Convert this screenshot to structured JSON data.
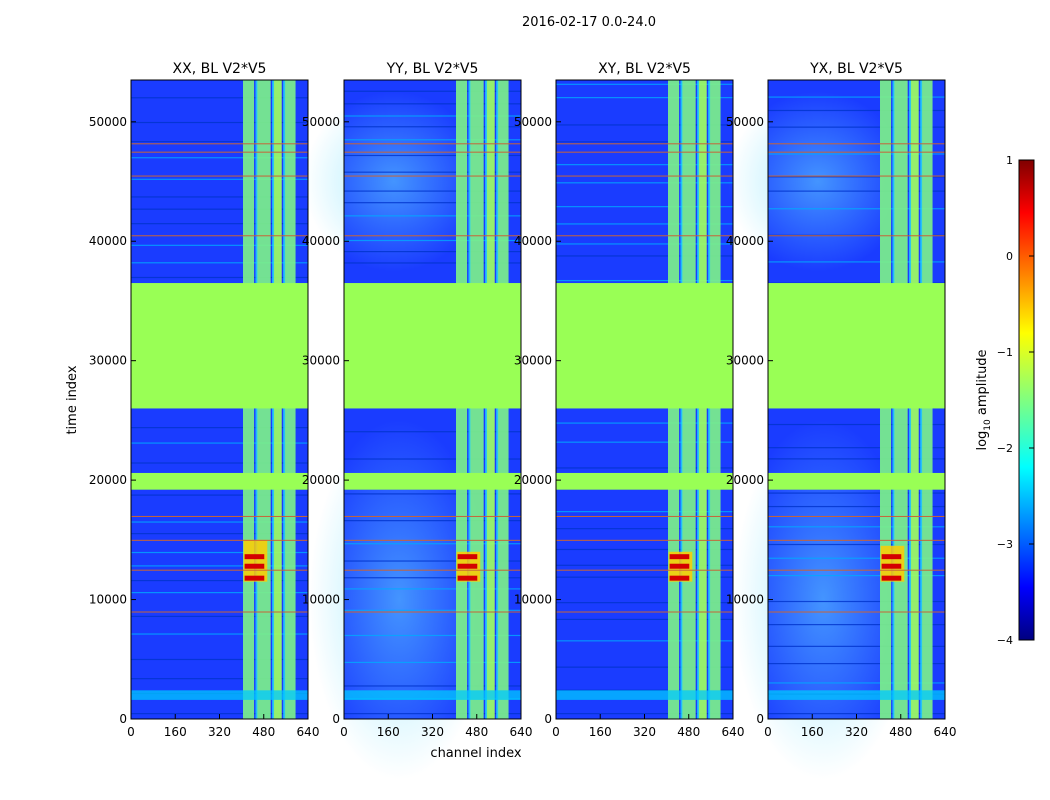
{
  "figure": {
    "suptitle": "2016-02-17 0.0-24.0",
    "xlabel": "channel index",
    "ylabel": "time index"
  },
  "chart_data": [
    {
      "type": "heatmap",
      "title": "XX, BL V2*V5",
      "x_range": [
        0,
        640
      ],
      "y_range": [
        0,
        53500
      ],
      "xticks": [
        0,
        160,
        320,
        480,
        640
      ],
      "yticks": [
        0,
        10000,
        20000,
        30000,
        40000,
        50000
      ],
      "z_label": "log10 amplitude",
      "flagged_time_ranges": [
        [
          26000,
          36500
        ],
        [
          19200,
          20600
        ]
      ],
      "bright_channel_ranges": [
        [
          405,
          445
        ],
        [
          455,
          505
        ],
        [
          515,
          545
        ],
        [
          555,
          595
        ]
      ],
      "rfi_time_ranges": [
        [
          1600,
          2400
        ]
      ],
      "hotspot": {
        "time_range": [
          11500,
          15000
        ],
        "channel_range": [
          400,
          500
        ]
      }
    },
    {
      "type": "heatmap",
      "title": "YY, BL V2*V5",
      "x_range": [
        0,
        640
      ],
      "y_range": [
        0,
        53500
      ],
      "xticks": [
        0,
        160,
        320,
        480,
        640
      ],
      "yticks": [
        0,
        10000,
        20000,
        30000,
        40000,
        50000
      ],
      "z_label": "log10 amplitude",
      "flagged_time_ranges": [
        [
          26000,
          36500
        ],
        [
          19200,
          20600
        ]
      ],
      "bright_channel_ranges": [
        [
          405,
          445
        ],
        [
          455,
          505
        ],
        [
          515,
          545
        ],
        [
          555,
          595
        ]
      ],
      "rfi_time_ranges": [
        [
          1600,
          2400
        ]
      ],
      "hotspot": {
        "time_range": [
          11500,
          14000
        ],
        "channel_range": [
          400,
          500
        ]
      }
    },
    {
      "type": "heatmap",
      "title": "XY, BL V2*V5",
      "x_range": [
        0,
        640
      ],
      "y_range": [
        0,
        53500
      ],
      "xticks": [
        0,
        160,
        320,
        480,
        640
      ],
      "yticks": [
        0,
        10000,
        20000,
        30000,
        40000,
        50000
      ],
      "z_label": "log10 amplitude",
      "flagged_time_ranges": [
        [
          26000,
          36500
        ],
        [
          19200,
          20600
        ]
      ],
      "bright_channel_ranges": [
        [
          405,
          445
        ],
        [
          455,
          505
        ],
        [
          515,
          545
        ],
        [
          555,
          595
        ]
      ],
      "rfi_time_ranges": [
        [
          1600,
          2400
        ]
      ],
      "hotspot": {
        "time_range": [
          11500,
          14000
        ],
        "channel_range": [
          400,
          500
        ]
      }
    },
    {
      "type": "heatmap",
      "title": "YX, BL V2*V5",
      "x_range": [
        0,
        640
      ],
      "y_range": [
        0,
        53500
      ],
      "xticks": [
        0,
        160,
        320,
        480,
        640
      ],
      "yticks": [
        0,
        10000,
        20000,
        30000,
        40000,
        50000
      ],
      "z_label": "log10 amplitude",
      "flagged_time_ranges": [
        [
          26000,
          36500
        ],
        [
          19200,
          20600
        ]
      ],
      "bright_channel_ranges": [
        [
          405,
          445
        ],
        [
          455,
          505
        ],
        [
          515,
          545
        ],
        [
          555,
          595
        ]
      ],
      "rfi_time_ranges": [
        [
          1600,
          2400
        ]
      ],
      "hotspot": {
        "time_range": [
          11500,
          14500
        ],
        "channel_range": [
          400,
          500
        ]
      }
    }
  ],
  "colorbar": {
    "label_base": "log",
    "label_sub": "10",
    "label_rest": " amplitude",
    "range": [
      -4,
      1
    ],
    "ticks": [
      1,
      0,
      -1,
      -2,
      -3,
      -4
    ],
    "tick_labels": [
      "1",
      "0",
      "−1",
      "−2",
      "−3",
      "−4"
    ],
    "colormap": "jet"
  },
  "colors": {
    "background_low": "#1a3cff",
    "flag": "#99ff55",
    "hot": "#d40000",
    "line": "#c86438"
  }
}
